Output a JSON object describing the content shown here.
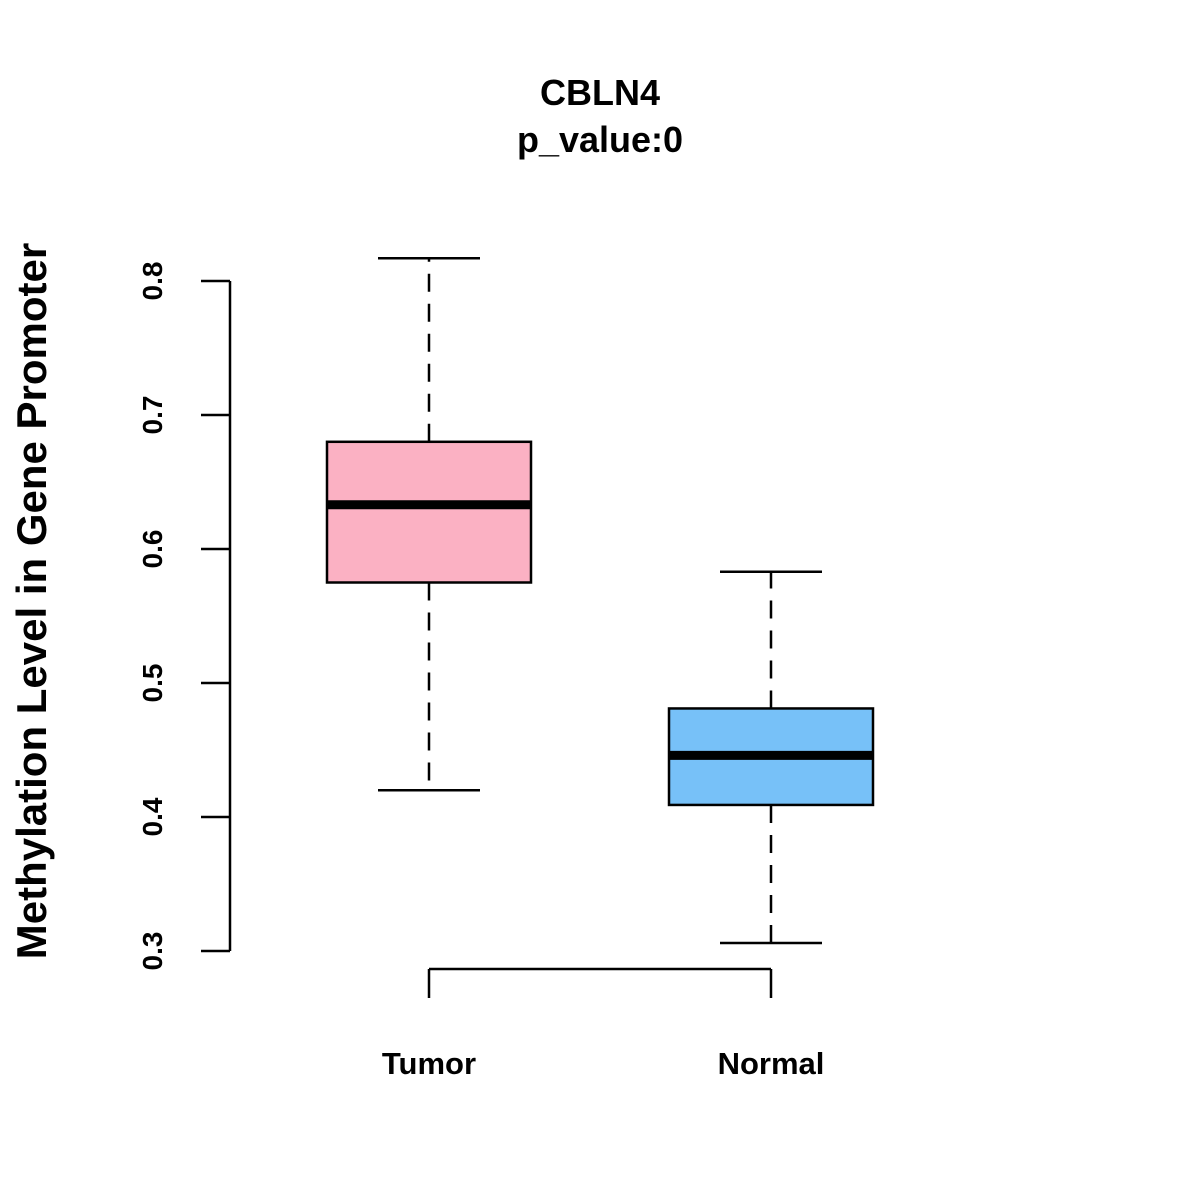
{
  "chart_data": {
    "type": "box",
    "title": "CBLN4",
    "subtitle": "p_value:0",
    "xlabel": "",
    "ylabel": "Methylation Level in Gene Promoter",
    "ylim": [
      0.3,
      0.8
    ],
    "yticks": [
      0.3,
      0.4,
      0.5,
      0.6,
      0.7,
      0.8
    ],
    "ytick_labels": [
      "0.3",
      "0.4",
      "0.5",
      "0.6",
      "0.7",
      "0.8"
    ],
    "categories": [
      "Tumor",
      "Normal"
    ],
    "boxes": [
      {
        "name": "Tumor",
        "whisker_low": 0.42,
        "q1": 0.575,
        "median": 0.633,
        "q3": 0.68,
        "whisker_high": 0.817,
        "color": "#FBB1C3"
      },
      {
        "name": "Normal",
        "whisker_low": 0.306,
        "q1": 0.409,
        "median": 0.446,
        "q3": 0.481,
        "whisker_high": 0.583,
        "color": "#77C1F8"
      }
    ],
    "grid": false,
    "legend": "none"
  }
}
